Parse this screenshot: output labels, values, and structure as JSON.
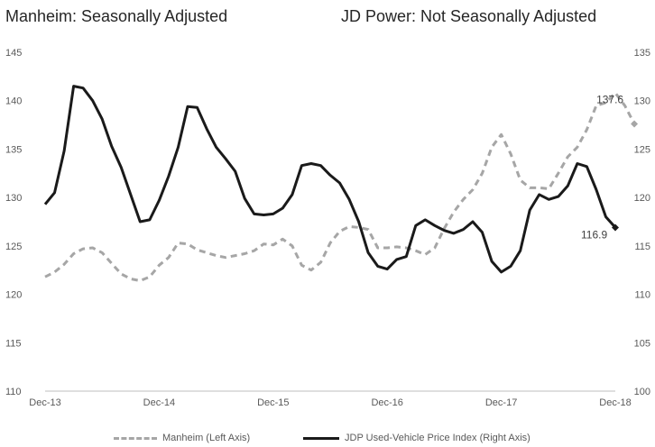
{
  "chart_data": {
    "type": "line",
    "titles": {
      "left": "Manheim: Seasonally Adjusted",
      "right": "JD Power: Not Seasonally Adjusted"
    },
    "x_tick_labels": [
      "Dec-13",
      "Dec-14",
      "Dec-15",
      "Dec-16",
      "Dec-17",
      "Dec-18"
    ],
    "y_left": {
      "range": [
        110,
        145
      ],
      "ticks": [
        110,
        115,
        120,
        125,
        130,
        135,
        140,
        145
      ]
    },
    "y_right": {
      "range": [
        100,
        135
      ],
      "ticks": [
        100,
        105,
        110,
        115,
        120,
        125,
        130,
        135
      ]
    },
    "grid": false,
    "legend_position": "bottom",
    "series": [
      {
        "name": "Manheim (Left Axis)",
        "axis": "left",
        "style": "dashed",
        "color": "#a6a6a6",
        "values": [
          121.8,
          122.3,
          123.1,
          124.2,
          124.7,
          124.8,
          124.3,
          123.2,
          122.1,
          121.6,
          121.4,
          121.8,
          123.0,
          123.8,
          125.3,
          125.2,
          124.6,
          124.3,
          124.0,
          123.8,
          124.0,
          124.2,
          124.5,
          125.2,
          125.1,
          125.7,
          125.0,
          123.0,
          122.5,
          123.3,
          125.3,
          126.5,
          127.0,
          126.9,
          126.7,
          124.8,
          124.8,
          124.9,
          124.8,
          124.5,
          124.1,
          124.8,
          126.8,
          128.5,
          129.8,
          130.8,
          132.5,
          135.2,
          136.5,
          134.5,
          131.8,
          131.0,
          131.0,
          130.9,
          132.5,
          134.2,
          135.2,
          137.0,
          139.5,
          139.8,
          140.8,
          139.5,
          137.6
        ],
        "end_label": "137.6"
      },
      {
        "name": "JDP Used-Vehicle Price Index (Right Axis)",
        "axis": "right",
        "style": "solid",
        "color": "#1a1a1a",
        "values": [
          119.3,
          120.5,
          124.8,
          131.5,
          131.3,
          130.0,
          128.1,
          125.3,
          123.1,
          120.3,
          117.5,
          117.7,
          119.7,
          122.2,
          125.2,
          129.4,
          129.3,
          127.1,
          125.2,
          124.0,
          122.7,
          119.9,
          118.3,
          118.2,
          118.3,
          118.9,
          120.3,
          123.3,
          123.5,
          123.3,
          122.3,
          121.5,
          119.8,
          117.5,
          114.3,
          112.9,
          112.6,
          113.6,
          113.9,
          117.1,
          117.7,
          117.1,
          116.6,
          116.3,
          116.7,
          117.5,
          116.4,
          113.4,
          112.3,
          112.9,
          114.5,
          118.7,
          120.3,
          119.8,
          120.1,
          121.2,
          123.5,
          123.2,
          120.8,
          118.0,
          116.9
        ],
        "end_label": "116.9"
      }
    ]
  }
}
